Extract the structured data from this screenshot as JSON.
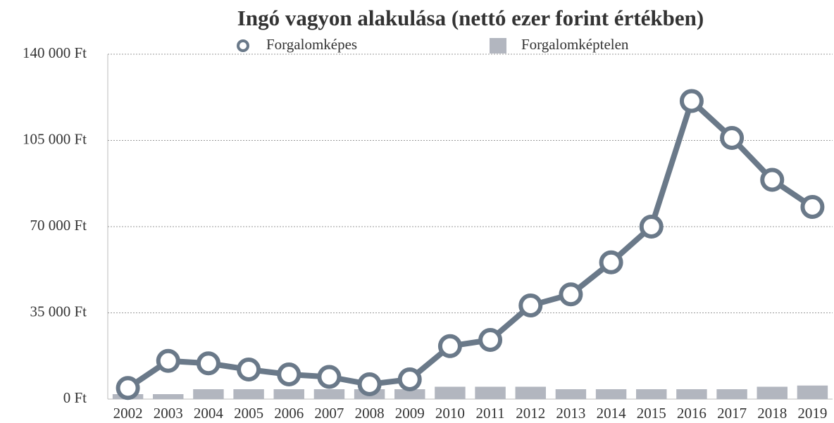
{
  "chart_data": {
    "type": "combo",
    "title": "Ingó vagyon alakulása (nettó ezer forint értékben)",
    "categories": [
      "2002",
      "2003",
      "2004",
      "2005",
      "2006",
      "2007",
      "2008",
      "2009",
      "2010",
      "2011",
      "2012",
      "2013",
      "2014",
      "2015",
      "2016",
      "2017",
      "2018",
      "2019"
    ],
    "series": [
      {
        "name": "Forgalomképes",
        "type": "line",
        "color": "#6a7989",
        "values": [
          4500,
          15500,
          14500,
          12000,
          10000,
          9000,
          6000,
          8000,
          21500,
          24000,
          38000,
          42500,
          55500,
          70000,
          121000,
          106000,
          89000,
          78000
        ]
      },
      {
        "name": "Forgalomképtelen",
        "type": "bar",
        "color": "#b2b6bf",
        "values": [
          2000,
          2000,
          4000,
          4000,
          4000,
          4000,
          4000,
          4000,
          5000,
          5000,
          5000,
          4000,
          4000,
          4000,
          4000,
          4000,
          5000,
          5500
        ]
      }
    ],
    "ylim": [
      0,
      140000
    ],
    "yticks": [
      {
        "value": 0,
        "label": "0 Ft"
      },
      {
        "value": 35000,
        "label": "35 000 Ft"
      },
      {
        "value": 70000,
        "label": "70 000 Ft"
      },
      {
        "value": 105000,
        "label": "105 000 Ft"
      },
      {
        "value": 140000,
        "label": "140 000 Ft"
      }
    ],
    "grid": true,
    "legend": "top"
  }
}
